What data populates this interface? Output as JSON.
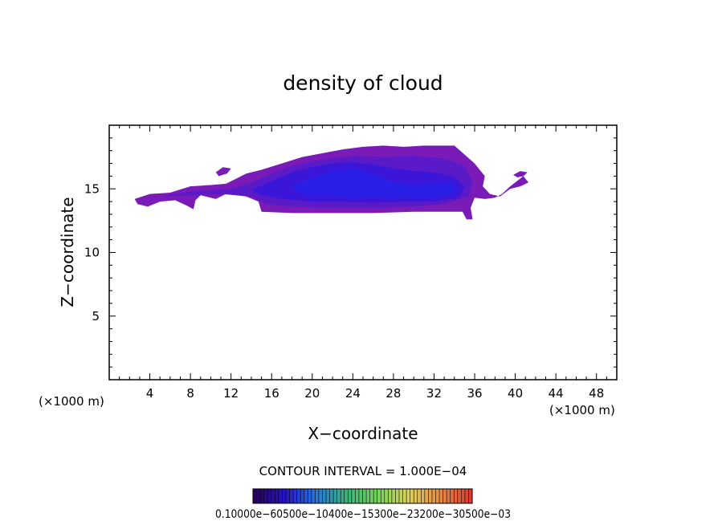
{
  "chart_data": {
    "type": "heatmap",
    "title": "density of cloud",
    "xlabel": "X−coordinate",
    "ylabel": "Z−coordinate",
    "xlim": [
      0,
      50
    ],
    "ylim": [
      0,
      20
    ],
    "x_ticks": [
      4,
      8,
      12,
      16,
      20,
      24,
      28,
      32,
      36,
      40,
      44,
      48
    ],
    "y_ticks": [
      5,
      10,
      15
    ],
    "x_unit_left": "(×1000 m)",
    "x_unit_right": "(×1000 m)",
    "contour_interval": "CONTOUR INTERVAL = 1.000E−04",
    "colorbar_labels": "0.10000e−60500e−10400e−15300e−23200e−30500e−03",
    "colors": {
      "outer": "#7a1bb8",
      "mid": "#5a1ac8",
      "inner": "#3b16d8",
      "core": "#2a1fe6",
      "background": "#ffffff"
    },
    "cloud_regions": [
      {
        "level": "outer",
        "points": [
          [
            2.5,
            14.2
          ],
          [
            4,
            14.6
          ],
          [
            6,
            14.7
          ],
          [
            8,
            15.2
          ],
          [
            10,
            15.3
          ],
          [
            11.5,
            15.4
          ],
          [
            12.5,
            15.8
          ],
          [
            13.5,
            16.2
          ],
          [
            15,
            16.5
          ],
          [
            17,
            17
          ],
          [
            19,
            17.5
          ],
          [
            21,
            17.8
          ],
          [
            23,
            18.1
          ],
          [
            25,
            18.3
          ],
          [
            27,
            18.4
          ],
          [
            29,
            18.3
          ],
          [
            31,
            18.4
          ],
          [
            34,
            18.4
          ],
          [
            35,
            17.7
          ],
          [
            36,
            17
          ],
          [
            37,
            16
          ],
          [
            36.8,
            15.2
          ],
          [
            37.5,
            14.6
          ],
          [
            38.5,
            14.4
          ],
          [
            39.5,
            15
          ],
          [
            40.5,
            15.2
          ],
          [
            41.3,
            15.5
          ],
          [
            40.8,
            16
          ],
          [
            40,
            15.5
          ],
          [
            39.5,
            15.2
          ],
          [
            38.7,
            14.6
          ],
          [
            38,
            14.3
          ],
          [
            37,
            14.2
          ],
          [
            36,
            14.3
          ],
          [
            35.6,
            13.5
          ],
          [
            35.8,
            12.6
          ],
          [
            35.2,
            12.6
          ],
          [
            34.8,
            13.2
          ],
          [
            33,
            13.2
          ],
          [
            30,
            13.2
          ],
          [
            26,
            13.1
          ],
          [
            22,
            13.1
          ],
          [
            18,
            13.1
          ],
          [
            15,
            13.2
          ],
          [
            14.7,
            14
          ],
          [
            13.5,
            14.4
          ],
          [
            11.5,
            14.6
          ],
          [
            10.5,
            14.2
          ],
          [
            9,
            14.5
          ],
          [
            8.5,
            14.1
          ],
          [
            8.3,
            13.4
          ],
          [
            7.6,
            13.7
          ],
          [
            6.5,
            14.1
          ],
          [
            5,
            14
          ],
          [
            3.8,
            13.6
          ],
          [
            2.8,
            13.8
          ],
          [
            2.5,
            14.2
          ]
        ]
      },
      {
        "level": "outer",
        "points": [
          [
            10.5,
            16.3
          ],
          [
            11.2,
            16.7
          ],
          [
            12,
            16.6
          ],
          [
            11.6,
            16.2
          ],
          [
            10.8,
            16
          ]
        ]
      },
      {
        "level": "outer",
        "points": [
          [
            39.8,
            16.1
          ],
          [
            40.5,
            16.4
          ],
          [
            41.2,
            16.3
          ],
          [
            40.8,
            16
          ],
          [
            40.2,
            15.9
          ]
        ]
      },
      {
        "level": "mid",
        "points": [
          [
            5,
            14.4
          ],
          [
            8,
            14.8
          ],
          [
            12,
            15
          ],
          [
            14,
            15.5
          ],
          [
            16,
            16.2
          ],
          [
            18,
            16.8
          ],
          [
            21,
            17.3
          ],
          [
            24,
            17.6
          ],
          [
            27,
            17.5
          ],
          [
            30,
            17.6
          ],
          [
            33,
            17.4
          ],
          [
            35,
            16.8
          ],
          [
            35.8,
            15.6
          ],
          [
            35.4,
            14.4
          ],
          [
            33,
            13.8
          ],
          [
            30,
            13.6
          ],
          [
            26,
            13.5
          ],
          [
            22,
            13.5
          ],
          [
            18,
            13.6
          ],
          [
            15.5,
            13.8
          ],
          [
            14,
            14.4
          ],
          [
            11,
            14.6
          ],
          [
            8,
            14.5
          ],
          [
            5,
            14.4
          ]
        ]
      },
      {
        "level": "inner",
        "points": [
          [
            14,
            14.9
          ],
          [
            16,
            15.6
          ],
          [
            18,
            16.3
          ],
          [
            20,
            16.7
          ],
          [
            22,
            17
          ],
          [
            24,
            17.1
          ],
          [
            26,
            16.9
          ],
          [
            28,
            16.6
          ],
          [
            30,
            16.4
          ],
          [
            32,
            16.3
          ],
          [
            34,
            15.9
          ],
          [
            35,
            15.2
          ],
          [
            34.5,
            14.3
          ],
          [
            32,
            14
          ],
          [
            29,
            14
          ],
          [
            26,
            13.9
          ],
          [
            23,
            14
          ],
          [
            20,
            14
          ],
          [
            17,
            14.2
          ],
          [
            15,
            14.5
          ],
          [
            14,
            14.9
          ]
        ]
      },
      {
        "level": "core",
        "points": [
          [
            18,
            15.2
          ],
          [
            20,
            15.9
          ],
          [
            22,
            16.4
          ],
          [
            24,
            16.6
          ],
          [
            26,
            16.2
          ],
          [
            28,
            15.5
          ],
          [
            30,
            15.3
          ],
          [
            32,
            15.5
          ],
          [
            34,
            15.4
          ],
          [
            34.2,
            14.7
          ],
          [
            32,
            14.3
          ],
          [
            29,
            14.4
          ],
          [
            26,
            14.3
          ],
          [
            23,
            14.4
          ],
          [
            20,
            14.5
          ],
          [
            18.5,
            14.7
          ],
          [
            18,
            15.2
          ]
        ]
      }
    ]
  }
}
